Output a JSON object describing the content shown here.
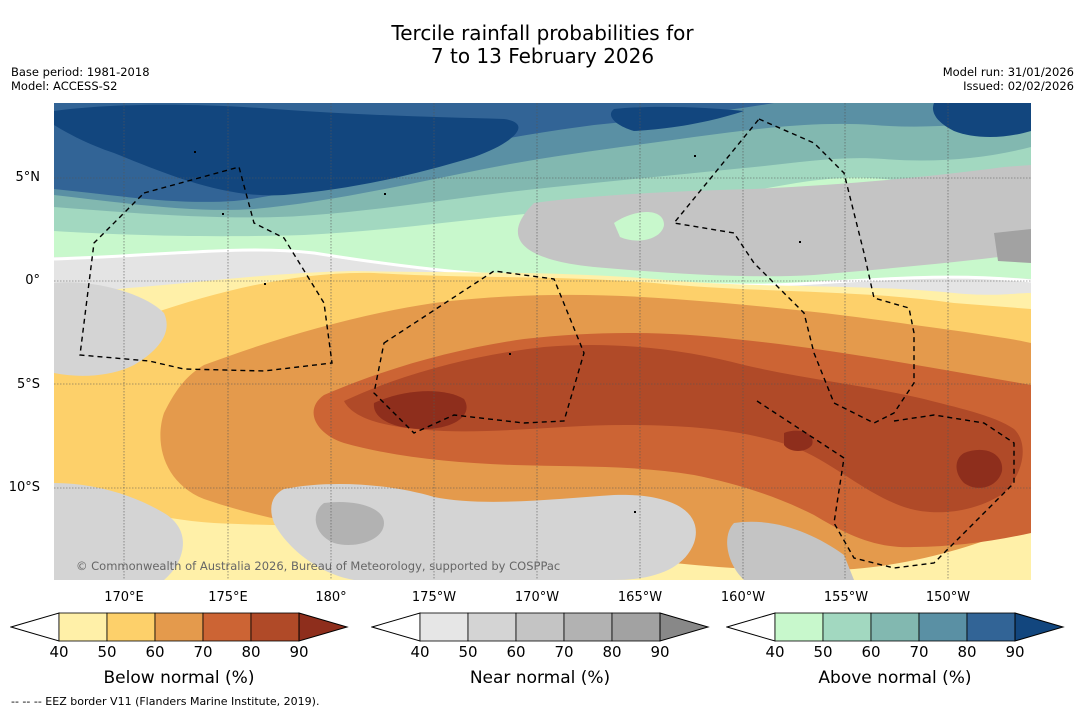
{
  "title": {
    "line1": "Tercile rainfall probabilities for",
    "line2": "7 to 13 February 2026"
  },
  "meta": {
    "base_period": "Base period: 1981-2018",
    "model": "Model: ACCESS-S2",
    "model_run": "Model run: 31/01/2026",
    "issued": "Issued: 02/02/2026"
  },
  "map": {
    "lat_labels": [
      "5°N",
      "0°",
      "5°S",
      "10°S"
    ],
    "lon_labels": [
      "170°E",
      "175°E",
      "180°",
      "175°W",
      "170°W",
      "165°W",
      "160°W",
      "155°W",
      "150°W"
    ],
    "attribution": "© Commonwealth of Australia 2026, Bureau of Meteorology, supported by COSPPac",
    "colors": {
      "below": [
        "#fff0a8",
        "#fdd06a",
        "#e49a4c",
        "#cc6434",
        "#b04a28",
        "#8e2e1c"
      ],
      "near": [
        "#e6e6e6",
        "#d4d4d4",
        "#c4c4c4",
        "#b2b2b2",
        "#a2a2a2",
        "#888888"
      ],
      "above": [
        "#c8f8cc",
        "#a2d8c0",
        "#82b8b0",
        "#5a90a4",
        "#326496",
        "#12467e"
      ]
    }
  },
  "colorbars": [
    {
      "title": "Below normal (%)",
      "ticks": [
        "40",
        "50",
        "60",
        "70",
        "80",
        "90"
      ]
    },
    {
      "title": "Near normal (%)",
      "ticks": [
        "40",
        "50",
        "60",
        "70",
        "80",
        "90"
      ]
    },
    {
      "title": "Above normal (%)",
      "ticks": [
        "40",
        "50",
        "60",
        "70",
        "80",
        "90"
      ]
    }
  ],
  "footer": {
    "eez_legend": "--  --  -- EEZ border V11 (Flanders Marine Institute, 2019)."
  }
}
